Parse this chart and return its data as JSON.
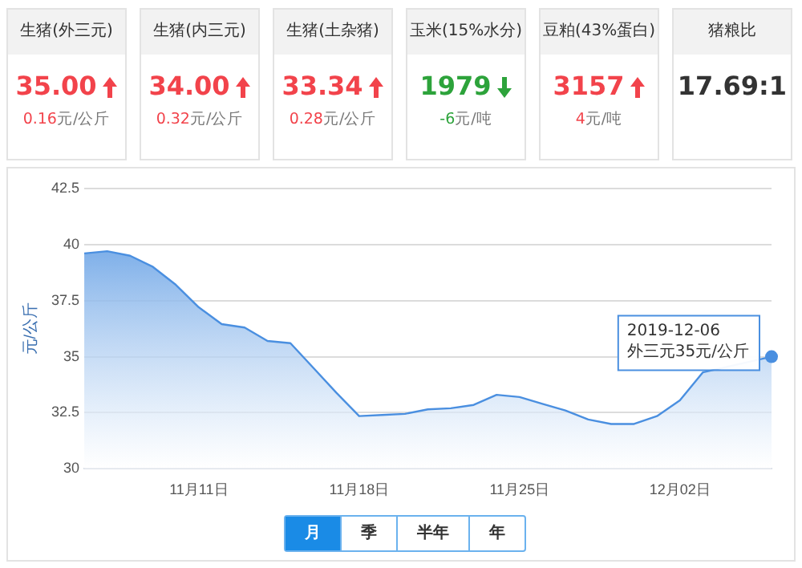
{
  "chart_data": [
    {
      "type": "other",
      "categories": [
        "35.00",
        "34.00",
        "33.34",
        "1979",
        "3157",
        "17.69:1"
      ],
      "annotations": [
        "生猪(外三元)",
        "生猪(内三元)",
        "生猪(土杂猪)",
        "玉米(15%水分)",
        "豆粕(43%蛋白)",
        "猪粮比",
        "0.16元/公斤",
        "0.32元/公斤",
        "0.28元/公斤",
        "-6元/吨",
        "4元/吨",
        null
      ],
      "colors": [
        "#f2434b",
        "#f2434b",
        "#f2434b",
        "#2da33b",
        "#f2434b",
        null
      ]
    },
    {
      "type": "area",
      "ylabel": "元/公斤",
      "x": [
        "2019-11-06",
        "2019-11-07",
        "2019-11-08",
        "2019-11-09",
        "2019-11-10",
        "2019-11-11",
        "2019-11-12",
        "2019-11-13",
        "2019-11-14",
        "2019-11-15",
        "2019-11-16",
        "2019-11-17",
        "2019-11-18",
        "2019-11-19",
        "2019-11-20",
        "2019-11-21",
        "2019-11-22",
        "2019-11-23",
        "2019-11-24",
        "2019-11-25",
        "2019-11-26",
        "2019-11-27",
        "2019-11-28",
        "2019-11-29",
        "2019-11-30",
        "2019-12-01",
        "2019-12-02",
        "2019-12-03",
        "2019-12-04",
        "2019-12-05",
        "2019-12-06"
      ],
      "series": [
        {
          "color": "#4a8fe0",
          "values": [
            39.6,
            39.7,
            39.5,
            39.0,
            38.2,
            37.2,
            36.45,
            36.3,
            35.7,
            35.6,
            34.5,
            33.4,
            32.35,
            32.4,
            32.45,
            32.65,
            32.7,
            32.85,
            33.3,
            33.2,
            32.9,
            32.6,
            32.2,
            32.0,
            32.0,
            32.35,
            33.05,
            34.3,
            null,
            null,
            35
          ]
        }
      ],
      "xlim": [
        "2019-11-06",
        "2019-12-06"
      ],
      "xticks": [
        {
          "value": "2019-11-11",
          "label": "11月11日"
        },
        {
          "value": "2019-11-18",
          "label": "11月18日"
        },
        {
          "value": "2019-11-25",
          "label": "11月25日"
        },
        {
          "value": "2019-12-02",
          "label": "12月02日"
        }
      ],
      "ylim": [
        30,
        42.5
      ],
      "yticks": [
        30,
        32.5,
        35,
        37.5,
        40,
        42.5
      ],
      "grid": "y",
      "legend": false,
      "marker": "none",
      "annotations": [
        {
          "text": "2019-12-06\n外三元35元/公斤",
          "x": "2019-12-06",
          "y": 35
        },
        "月",
        "季",
        "半年",
        "年"
      ]
    }
  ]
}
